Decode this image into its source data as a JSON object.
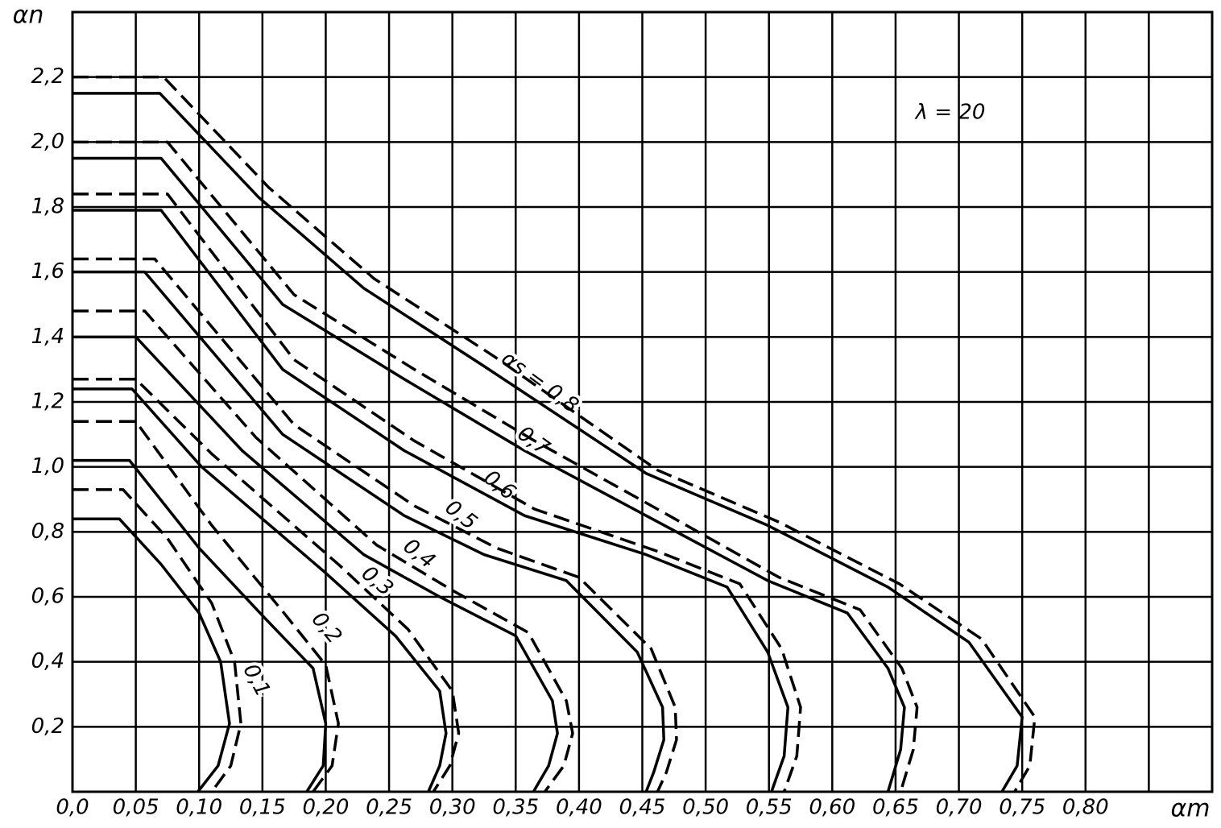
{
  "chart_data": {
    "type": "line",
    "x_label": "αm",
    "y_label": "αn",
    "annotation": "λ = 20",
    "xlim": [
      0,
      0.9
    ],
    "ylim": [
      0,
      2.4
    ],
    "grid": true,
    "xticks": [
      {
        "value": 0,
        "label": "0,0"
      },
      {
        "value": 0.05,
        "label": "0,05"
      },
      {
        "value": 0.1,
        "label": "0,10"
      },
      {
        "value": 0.15,
        "label": "0,15"
      },
      {
        "value": 0.2,
        "label": "0,20"
      },
      {
        "value": 0.25,
        "label": "0,25"
      },
      {
        "value": 0.3,
        "label": "0,30"
      },
      {
        "value": 0.35,
        "label": "0,35"
      },
      {
        "value": 0.4,
        "label": "0,40"
      },
      {
        "value": 0.45,
        "label": "0,45"
      },
      {
        "value": 0.5,
        "label": "0,50"
      },
      {
        "value": 0.55,
        "label": "0,55"
      },
      {
        "value": 0.6,
        "label": "0,60"
      },
      {
        "value": 0.65,
        "label": "0,65"
      },
      {
        "value": 0.7,
        "label": "0,70"
      },
      {
        "value": 0.75,
        "label": "0,75"
      },
      {
        "value": 0.8,
        "label": "0,80"
      },
      {
        "value": 0.85,
        "label": null
      },
      {
        "value": 0.9,
        "label": null
      }
    ],
    "yticks": [
      {
        "value": 0.2,
        "label": "0,2"
      },
      {
        "value": 0.4,
        "label": "0,4"
      },
      {
        "value": 0.6,
        "label": "0,6"
      },
      {
        "value": 0.8,
        "label": "0,8"
      },
      {
        "value": 1.0,
        "label": "1,0"
      },
      {
        "value": 1.2,
        "label": "1,2"
      },
      {
        "value": 1.4,
        "label": "1,4"
      },
      {
        "value": 1.6,
        "label": "1,6"
      },
      {
        "value": 1.8,
        "label": "1,8"
      },
      {
        "value": 2.0,
        "label": "2,0"
      },
      {
        "value": 2.2,
        "label": "2,2"
      },
      {
        "value": 2.4,
        "label": null
      }
    ],
    "series": [
      {
        "name": "0,1",
        "color": "#000",
        "dashed": false,
        "x": [
          0,
          0.037,
          0.07,
          0.1,
          0.117,
          0.124,
          0.115,
          0.099
        ],
        "values": [
          0.84,
          0.84,
          0.7,
          0.55,
          0.4,
          0.21,
          0.08,
          0
        ]
      },
      {
        "name": "0,2",
        "color": "#000",
        "dashed": false,
        "x": [
          0,
          0.045,
          0.1,
          0.153,
          0.19,
          0.2,
          0.198,
          0.185
        ],
        "values": [
          1.02,
          1.02,
          0.75,
          0.53,
          0.38,
          0.21,
          0.08,
          0
        ]
      },
      {
        "name": "0,3",
        "color": "#000",
        "dashed": false,
        "x": [
          0,
          0.047,
          0.102,
          0.198,
          0.255,
          0.29,
          0.295,
          0.29,
          0.281
        ],
        "values": [
          1.24,
          1.24,
          1.0,
          0.68,
          0.48,
          0.31,
          0.18,
          0.08,
          0
        ]
      },
      {
        "name": "0,4",
        "color": "#000",
        "dashed": false,
        "x": [
          0,
          0.05,
          0.134,
          0.23,
          0.29,
          0.35,
          0.379,
          0.383,
          0.376,
          0.364
        ],
        "values": [
          1.4,
          1.4,
          1.05,
          0.73,
          0.6,
          0.48,
          0.28,
          0.18,
          0.08,
          0
        ]
      },
      {
        "name": "0,5",
        "color": "#000",
        "dashed": false,
        "x": [
          0,
          0.057,
          0.166,
          0.262,
          0.325,
          0.39,
          0.446,
          0.466,
          0.467,
          0.459,
          0.453
        ],
        "values": [
          1.6,
          1.6,
          1.1,
          0.85,
          0.73,
          0.65,
          0.43,
          0.26,
          0.16,
          0.06,
          0
        ]
      },
      {
        "name": "0,6",
        "color": "#000",
        "dashed": false,
        "x": [
          0,
          0.07,
          0.166,
          0.262,
          0.357,
          0.453,
          0.517,
          0.549,
          0.565,
          0.562,
          0.552
        ],
        "values": [
          1.79,
          1.79,
          1.3,
          1.05,
          0.85,
          0.73,
          0.63,
          0.43,
          0.26,
          0.11,
          0
        ]
      },
      {
        "name": "0,7",
        "color": "#000",
        "dashed": false,
        "x": [
          0,
          0.07,
          0.166,
          0.262,
          0.357,
          0.453,
          0.549,
          0.612,
          0.644,
          0.657,
          0.654,
          0.644
        ],
        "values": [
          1.95,
          1.95,
          1.5,
          1.27,
          1.05,
          0.85,
          0.65,
          0.55,
          0.38,
          0.26,
          0.13,
          0
        ]
      },
      {
        "name": "αs = 0,8",
        "color": "#000",
        "dashed": false,
        "x": [
          0,
          0.069,
          0.147,
          0.23,
          0.325,
          0.453,
          0.549,
          0.644,
          0.708,
          0.75,
          0.746,
          0.734
        ],
        "values": [
          2.15,
          2.15,
          1.83,
          1.55,
          1.31,
          0.98,
          0.82,
          0.63,
          0.46,
          0.23,
          0.08,
          0
        ]
      },
      {
        "color": "#000",
        "dashed": true,
        "x": [
          0,
          0.04,
          0.075,
          0.11,
          0.128,
          0.133,
          0.125,
          0.11
        ],
        "values": [
          0.93,
          0.93,
          0.78,
          0.58,
          0.4,
          0.21,
          0.08,
          0
        ]
      },
      {
        "color": "#000",
        "dashed": true,
        "x": [
          0,
          0.05,
          0.11,
          0.165,
          0.2,
          0.21,
          0.205,
          0.19
        ],
        "values": [
          1.14,
          1.14,
          0.82,
          0.56,
          0.39,
          0.21,
          0.08,
          0
        ]
      },
      {
        "color": "#000",
        "dashed": true,
        "x": [
          0,
          0.05,
          0.11,
          0.21,
          0.265,
          0.3,
          0.305,
          0.298,
          0.285
        ],
        "values": [
          1.27,
          1.27,
          1.04,
          0.7,
          0.5,
          0.31,
          0.18,
          0.08,
          0
        ]
      },
      {
        "color": "#000",
        "dashed": true,
        "x": [
          0,
          0.057,
          0.145,
          0.24,
          0.3,
          0.36,
          0.39,
          0.395,
          0.388,
          0.373
        ],
        "values": [
          1.48,
          1.48,
          1.09,
          0.76,
          0.62,
          0.49,
          0.28,
          0.18,
          0.08,
          0
        ]
      },
      {
        "color": "#000",
        "dashed": true,
        "x": [
          0,
          0.065,
          0.175,
          0.27,
          0.335,
          0.4,
          0.457,
          0.476,
          0.477,
          0.469,
          0.462
        ],
        "values": [
          1.64,
          1.64,
          1.13,
          0.88,
          0.75,
          0.66,
          0.44,
          0.26,
          0.16,
          0.06,
          0
        ]
      },
      {
        "color": "#000",
        "dashed": true,
        "x": [
          0,
          0.075,
          0.175,
          0.27,
          0.365,
          0.462,
          0.527,
          0.56,
          0.575,
          0.572,
          0.562
        ],
        "values": [
          1.84,
          1.84,
          1.33,
          1.08,
          0.87,
          0.74,
          0.64,
          0.44,
          0.26,
          0.11,
          0
        ]
      },
      {
        "color": "#000",
        "dashed": true,
        "x": [
          0,
          0.075,
          0.175,
          0.27,
          0.365,
          0.462,
          0.558,
          0.622,
          0.655,
          0.667,
          0.664,
          0.654
        ],
        "values": [
          2.0,
          2.0,
          1.53,
          1.3,
          1.08,
          0.87,
          0.66,
          0.56,
          0.38,
          0.26,
          0.13,
          0
        ]
      },
      {
        "color": "#000",
        "dashed": true,
        "x": [
          0,
          0.072,
          0.155,
          0.238,
          0.333,
          0.462,
          0.558,
          0.653,
          0.718,
          0.76,
          0.756,
          0.744
        ],
        "values": [
          2.2,
          2.2,
          1.86,
          1.58,
          1.34,
          0.99,
          0.83,
          0.64,
          0.47,
          0.23,
          0.08,
          0
        ]
      }
    ]
  }
}
